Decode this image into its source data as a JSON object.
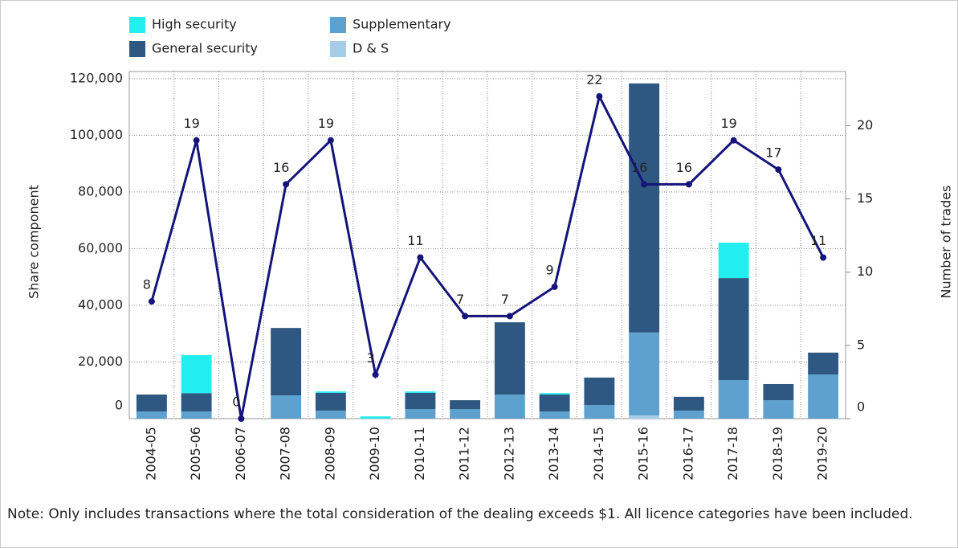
{
  "chart_data": {
    "type": "bar",
    "stacked": true,
    "categories": [
      "2004-05",
      "2005-06",
      "2006-07",
      "2007-08",
      "2008-09",
      "2009-10",
      "2010-11",
      "2011-12",
      "2012-13",
      "2013-14",
      "2014-15",
      "2015-16",
      "2016-17",
      "2017-18",
      "2018-19",
      "2019-20"
    ],
    "series": [
      {
        "name": "High security",
        "color": "#22eef0",
        "values": [
          0,
          13400,
          0,
          0,
          500,
          800,
          500,
          0,
          0,
          500,
          0,
          0,
          0,
          12500,
          0,
          0
        ]
      },
      {
        "name": "General security",
        "color": "#2e5781",
        "values": [
          6000,
          6500,
          0,
          23800,
          6300,
          0,
          5700,
          3100,
          25500,
          6000,
          9700,
          87900,
          4900,
          36000,
          5700,
          7700
        ]
      },
      {
        "name": "Supplementary",
        "color": "#5ea1cf",
        "values": [
          2500,
          2500,
          0,
          8200,
          2800,
          0,
          3400,
          3400,
          8500,
          2500,
          4800,
          29300,
          2800,
          13600,
          6500,
          15600
        ]
      },
      {
        "name": "D & S",
        "color": "#a4cde9",
        "values": [
          0,
          0,
          0,
          0,
          0,
          0,
          0,
          0,
          0,
          0,
          0,
          1100,
          0,
          0,
          0,
          0
        ]
      },
      {
        "type": "line",
        "axis": "y2",
        "color": "#14147a",
        "values": [
          8,
          19,
          0,
          16,
          19,
          3,
          11,
          7,
          7,
          9,
          22,
          16,
          16,
          19,
          17,
          11
        ]
      }
    ],
    "ylabel": "Share component",
    "y2label": "Number of trades",
    "ylim": [
      0,
      122500
    ],
    "yticks": [
      0,
      {
        "value": 20000,
        "label": "20,000"
      },
      {
        "value": 40000,
        "label": "40,000"
      },
      {
        "value": 60000,
        "label": "60,000"
      },
      {
        "value": 80000,
        "label": "80,000"
      },
      {
        "value": 100000,
        "label": "100,000"
      },
      {
        "value": 120000,
        "label": "120,000"
      }
    ],
    "y2lim": [
      0,
      23.7
    ],
    "y2ticks": [
      0,
      5,
      10,
      15,
      20
    ],
    "grid": true,
    "legend": "top-left",
    "note": "Note: Only includes transactions where the total consideration of the dealing exceeds $1. All licence categories have been included."
  }
}
